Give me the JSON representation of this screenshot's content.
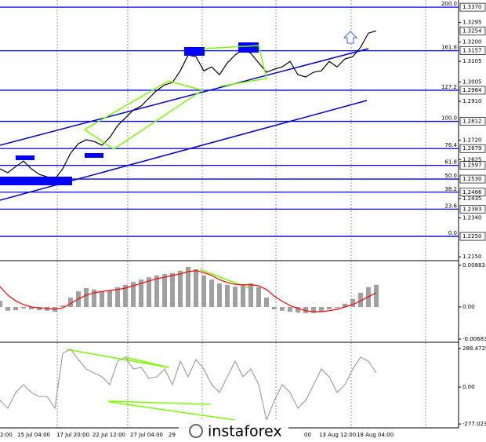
{
  "chart_data": [
    {
      "type": "line",
      "color": "#000000",
      "level_color": "#0000ff",
      "values": [
        1.258,
        1.2561,
        1.2591,
        1.2618,
        1.258,
        1.2553,
        1.2541,
        1.253,
        1.258,
        1.2656,
        1.2703,
        1.2722,
        1.2714,
        1.2695,
        1.2733,
        1.2791,
        1.2829,
        1.2867,
        1.2887,
        1.2925,
        1.2963,
        1.299,
        1.3002,
        1.3059,
        1.3136,
        1.3128,
        1.3059,
        1.3078,
        1.304,
        1.3098,
        1.3136,
        1.3167,
        1.3144,
        1.3098,
        1.3052,
        1.3067,
        1.3078,
        1.3105,
        1.304,
        1.3029,
        1.3052,
        1.3059,
        1.3105,
        1.3078,
        1.3117,
        1.3128,
        1.3174,
        1.3243,
        1.3254
      ],
      "ylim": [
        1.2139,
        1.3405
      ],
      "yticks": [
        {
          "value": 1.3295,
          "label": "1.3295"
        },
        {
          "value": 1.32,
          "label": "1.3200"
        },
        {
          "value": 1.3105,
          "label": "1.3105"
        },
        {
          "value": 1.3005,
          "label": "1.3005"
        },
        {
          "value": 1.291,
          "label": "1.2910"
        },
        {
          "value": 1.272,
          "label": "1.2720"
        },
        {
          "value": 1.2625,
          "label": "1.2625"
        },
        {
          "value": 1.2435,
          "label": "1.2435"
        },
        {
          "value": 1.234,
          "label": "1.2340"
        },
        {
          "value": 1.215,
          "label": "1.2150"
        }
      ],
      "levels": [
        {
          "value": 1.337,
          "label": "1.3370",
          "fib": "200.0"
        },
        {
          "value": 1.3157,
          "label": "1.3157",
          "fib": "161.8"
        },
        {
          "value": 1.2964,
          "label": "1.2964",
          "fib": "127.2"
        },
        {
          "value": 1.2812,
          "label": "1.2812",
          "fib": "100.0"
        },
        {
          "value": 1.2679,
          "label": "1.2679",
          "fib": "76.4"
        },
        {
          "value": 1.2597,
          "label": "1.2597",
          "fib": "61.8"
        },
        {
          "value": 1.253,
          "label": "1.2530",
          "fib": "50.0"
        },
        {
          "value": 1.2466,
          "label": "1.2466",
          "fib": "38.2"
        },
        {
          "value": 1.2383,
          "label": "1.2383",
          "fib": "23.6"
        },
        {
          "value": 1.225,
          "label": "1.2250",
          "fib": "0.0"
        }
      ],
      "last": {
        "value": 1.3254,
        "label": "1.3254"
      }
    },
    {
      "type": "histogram",
      "color": "#a0a0a0",
      "values": [
        0.0013,
        -0.0008,
        -0.0007,
        -0.0003,
        -0.0005,
        -0.0007,
        -0.0008,
        -0.001,
        0.0003,
        0.002,
        0.0033,
        0.004,
        0.0037,
        0.0033,
        0.0035,
        0.0042,
        0.0047,
        0.0053,
        0.0058,
        0.0063,
        0.0067,
        0.007,
        0.0072,
        0.0077,
        0.0085,
        0.008,
        0.0067,
        0.0058,
        0.005,
        0.0047,
        0.0043,
        0.0047,
        0.005,
        0.0042,
        0.002,
        -0.0005,
        -0.0008,
        -0.001,
        -0.0012,
        -0.0013,
        -0.0013,
        -0.001,
        -0.0005,
        -0.0002,
        0.0007,
        0.0017,
        0.003,
        0.0042,
        0.0047
      ],
      "signal": {
        "color": "#ff0000",
        "values": [
          0.0043,
          0.0025,
          0.0013,
          0.0005,
          0,
          -0.0002,
          -0.0003,
          -0.0005,
          -0.0002,
          0.0007,
          0.0017,
          0.0025,
          0.003,
          0.0033,
          0.0035,
          0.0037,
          0.004,
          0.0045,
          0.005,
          0.0055,
          0.006,
          0.0063,
          0.0067,
          0.007,
          0.0075,
          0.0077,
          0.0073,
          0.0067,
          0.0058,
          0.0052,
          0.0048,
          0.0047,
          0.0047,
          0.0045,
          0.0037,
          0.0023,
          0.0012,
          0.0003,
          -0.0003,
          -0.0008,
          -0.001,
          -0.001,
          -0.0008,
          -0.0005,
          0,
          0.0005,
          0.0013,
          0.0022,
          0.003
        ]
      },
      "ylim": [
        -0.00733,
        0.00966
      ],
      "yticks": [
        0.00883,
        {
          "value": 0,
          "label": "0.00"
        },
        -0.00683
      ]
    },
    {
      "type": "line",
      "color": "#a0a0a0",
      "values": [
        -100,
        -159,
        -41,
        18,
        -41,
        -71,
        -71,
        -159,
        253,
        283,
        206,
        135,
        106,
        77,
        18,
        194,
        224,
        135,
        147,
        65,
        77,
        135,
        18,
        194,
        77,
        206,
        135,
        18,
        -41,
        77,
        194,
        77,
        135,
        18,
        -247,
        -100,
        18,
        -41,
        -159,
        -100,
        18,
        135,
        77,
        -41,
        18,
        135,
        224,
        194,
        106
      ],
      "ylim": [
        -305.9,
        323.5
      ],
      "yticks": [
        288.4729,
        {
          "value": 0,
          "label": "0.00"
        },
        -277.023
      ],
      "x_labels": [
        "2:00",
        "15 Jul 04:00",
        "17 Jul 20:00",
        "22 Jul 12:00",
        "27 Jul 04:00",
        "29",
        "00",
        "13 Aug 12:00",
        "18 Aug 04:00"
      ]
    }
  ],
  "watermark": "instaforex"
}
